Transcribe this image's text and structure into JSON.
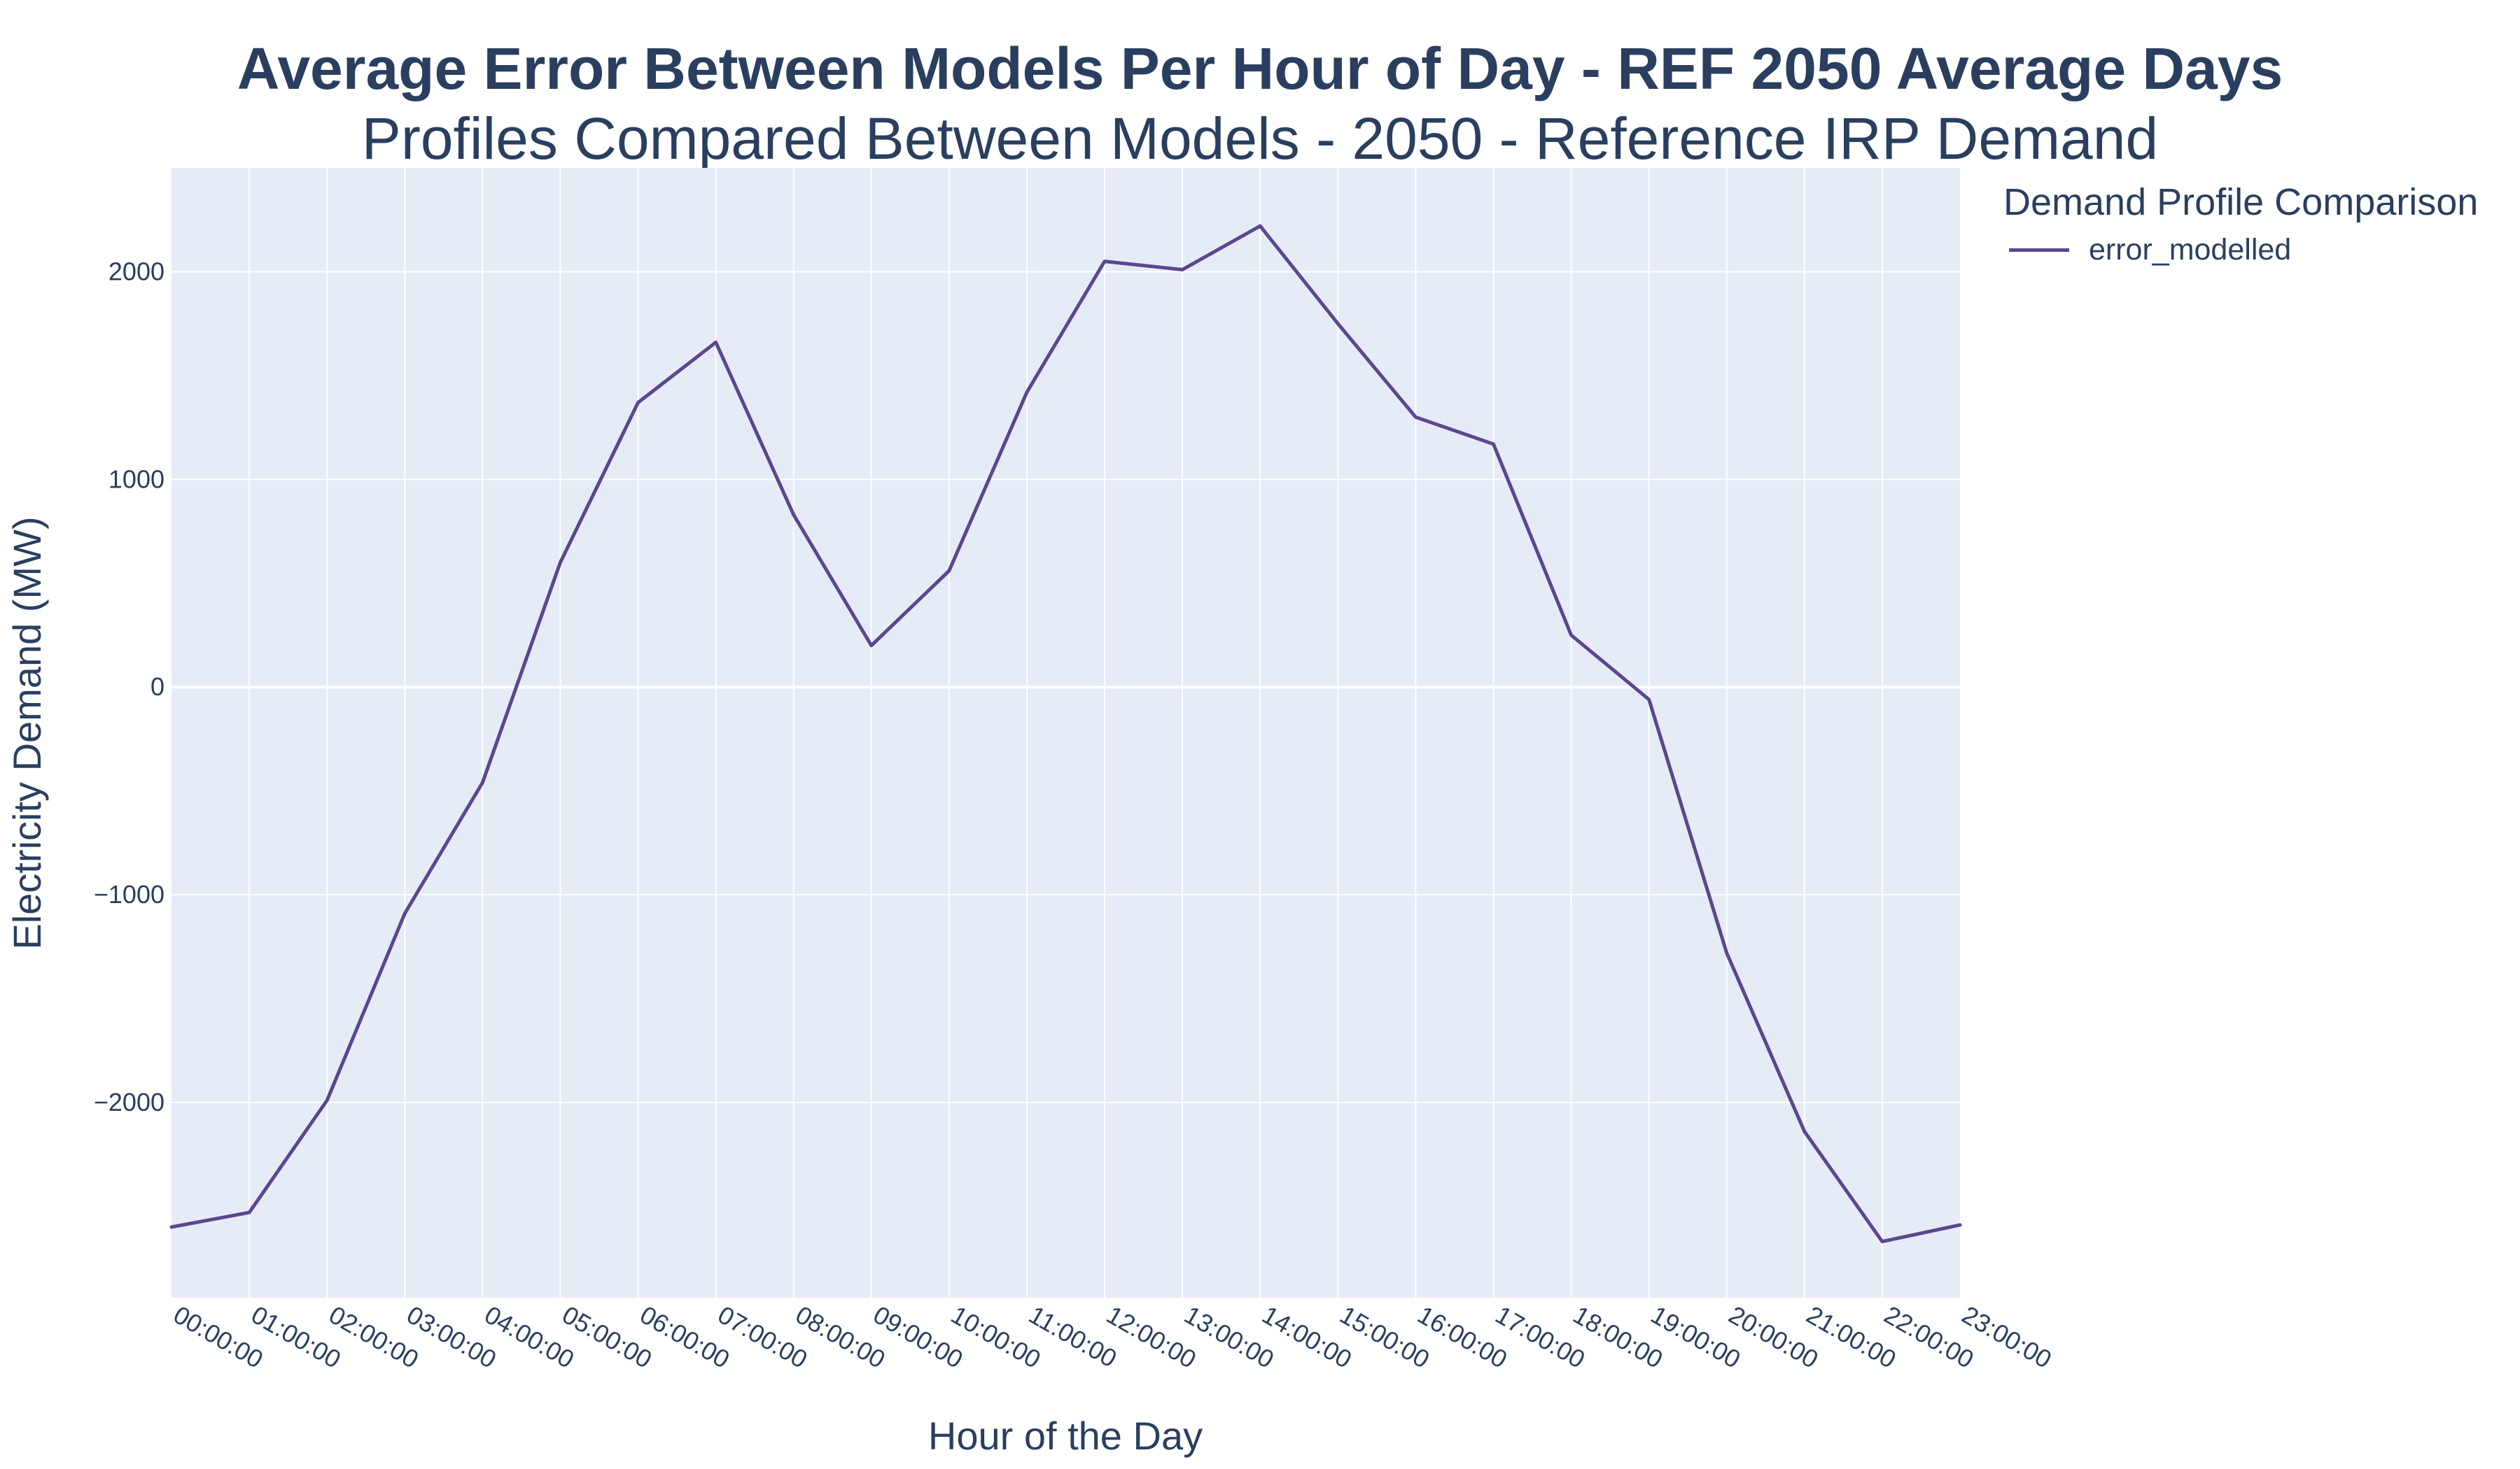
{
  "chart_data": {
    "type": "line",
    "title": "Average Error Between Models Per Hour of Day - REF 2050 Average Days",
    "subtitle": "Profiles Compared Between Models - 2050 - Reference IRP Demand",
    "xlabel": "Hour of the Day",
    "ylabel": "Electricity Demand (MW)",
    "legend_title": "Demand Profile Comparison",
    "legend_position": "top-right, outside plot",
    "ylim": [
      -2940,
      2500
    ],
    "yticks": [
      -2000,
      -1000,
      0,
      1000,
      2000
    ],
    "ytick_labels": [
      "−2000",
      "−1000",
      "0",
      "1000",
      "2000"
    ],
    "grid": true,
    "categories": [
      "00:00:00",
      "01:00:00",
      "02:00:00",
      "03:00:00",
      "04:00:00",
      "05:00:00",
      "06:00:00",
      "07:00:00",
      "08:00:00",
      "09:00:00",
      "10:00:00",
      "11:00:00",
      "12:00:00",
      "13:00:00",
      "14:00:00",
      "15:00:00",
      "16:00:00",
      "17:00:00",
      "18:00:00",
      "19:00:00",
      "20:00:00",
      "21:00:00",
      "22:00:00",
      "23:00:00"
    ],
    "series": [
      {
        "name": "error_modelled",
        "color": "#5c4690",
        "values": [
          -2600,
          -2530,
          -1990,
          -1090,
          -460,
          600,
          1370,
          1660,
          830,
          200,
          560,
          1420,
          2050,
          2010,
          2220,
          1750,
          1300,
          1170,
          250,
          -60,
          -1280,
          -2140,
          -2670,
          -2590
        ]
      }
    ]
  },
  "colors": {
    "plot_bg": "#e5ecf6",
    "grid": "#ffffff",
    "text": "#2a3f5f",
    "series": "#5c4690"
  }
}
